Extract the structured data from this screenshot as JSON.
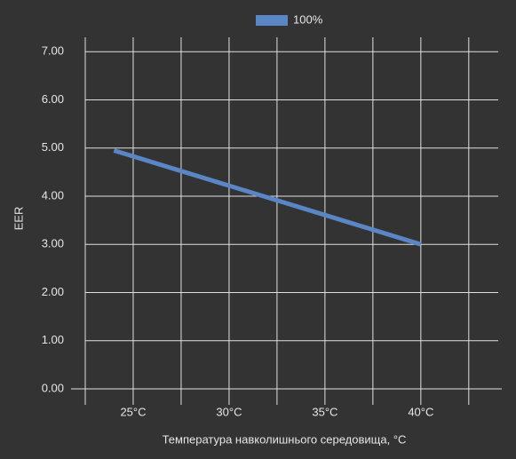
{
  "chart_data": {
    "type": "line",
    "x_label": "Температура навколишнього середовища, °C",
    "y_label": "EER",
    "x": [
      24,
      40
    ],
    "series": [
      {
        "name": "100%",
        "color": "#5b86c5",
        "values": [
          4.95,
          3.0
        ]
      }
    ],
    "xlim": [
      22.5,
      44.5
    ],
    "xticks": [
      {
        "value": 25,
        "label": "25°C"
      },
      {
        "value": 30,
        "label": "30°C"
      },
      {
        "value": 35,
        "label": "35°C"
      },
      {
        "value": 40,
        "label": "40°C"
      }
    ],
    "minor_xticks": [
      27.5,
      32.5,
      37.5,
      42.5
    ],
    "ylim": [
      0,
      7.3
    ],
    "yticks": [
      {
        "value": 0,
        "label": "0.00"
      },
      {
        "value": 1,
        "label": "1.00"
      },
      {
        "value": 2,
        "label": "2.00"
      },
      {
        "value": 3,
        "label": "3.00"
      },
      {
        "value": 4,
        "label": "4.00"
      },
      {
        "value": 5,
        "label": "5.00"
      },
      {
        "value": 6,
        "label": "6.00"
      },
      {
        "value": 7,
        "label": "7.00"
      }
    ],
    "grid": true,
    "legend": "top"
  }
}
